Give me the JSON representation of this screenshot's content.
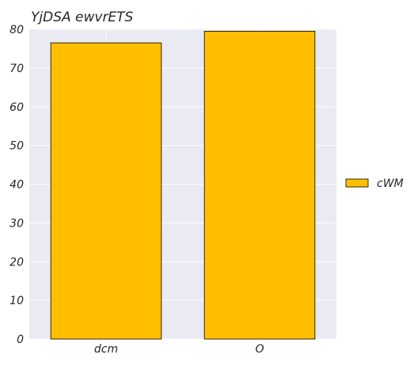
{
  "chart_data": {
    "type": "bar",
    "title": "YjDSA ewvrETS",
    "xlabel": "",
    "ylabel": "",
    "categories": [
      "dcm",
      "O"
    ],
    "series": [
      {
        "name": "cWM",
        "values": [
          76.5,
          79.5
        ],
        "color": "#FFBF00"
      }
    ],
    "ylim": [
      0,
      80
    ],
    "yticks": [
      "0",
      "10",
      "20",
      "30",
      "40",
      "50",
      "60",
      "70",
      "80"
    ],
    "grid": true,
    "legend_position": "center-right",
    "plot_background": "#EAEAF2",
    "grid_color": "#FFFFFF",
    "bar_edge_color": "#000000"
  }
}
